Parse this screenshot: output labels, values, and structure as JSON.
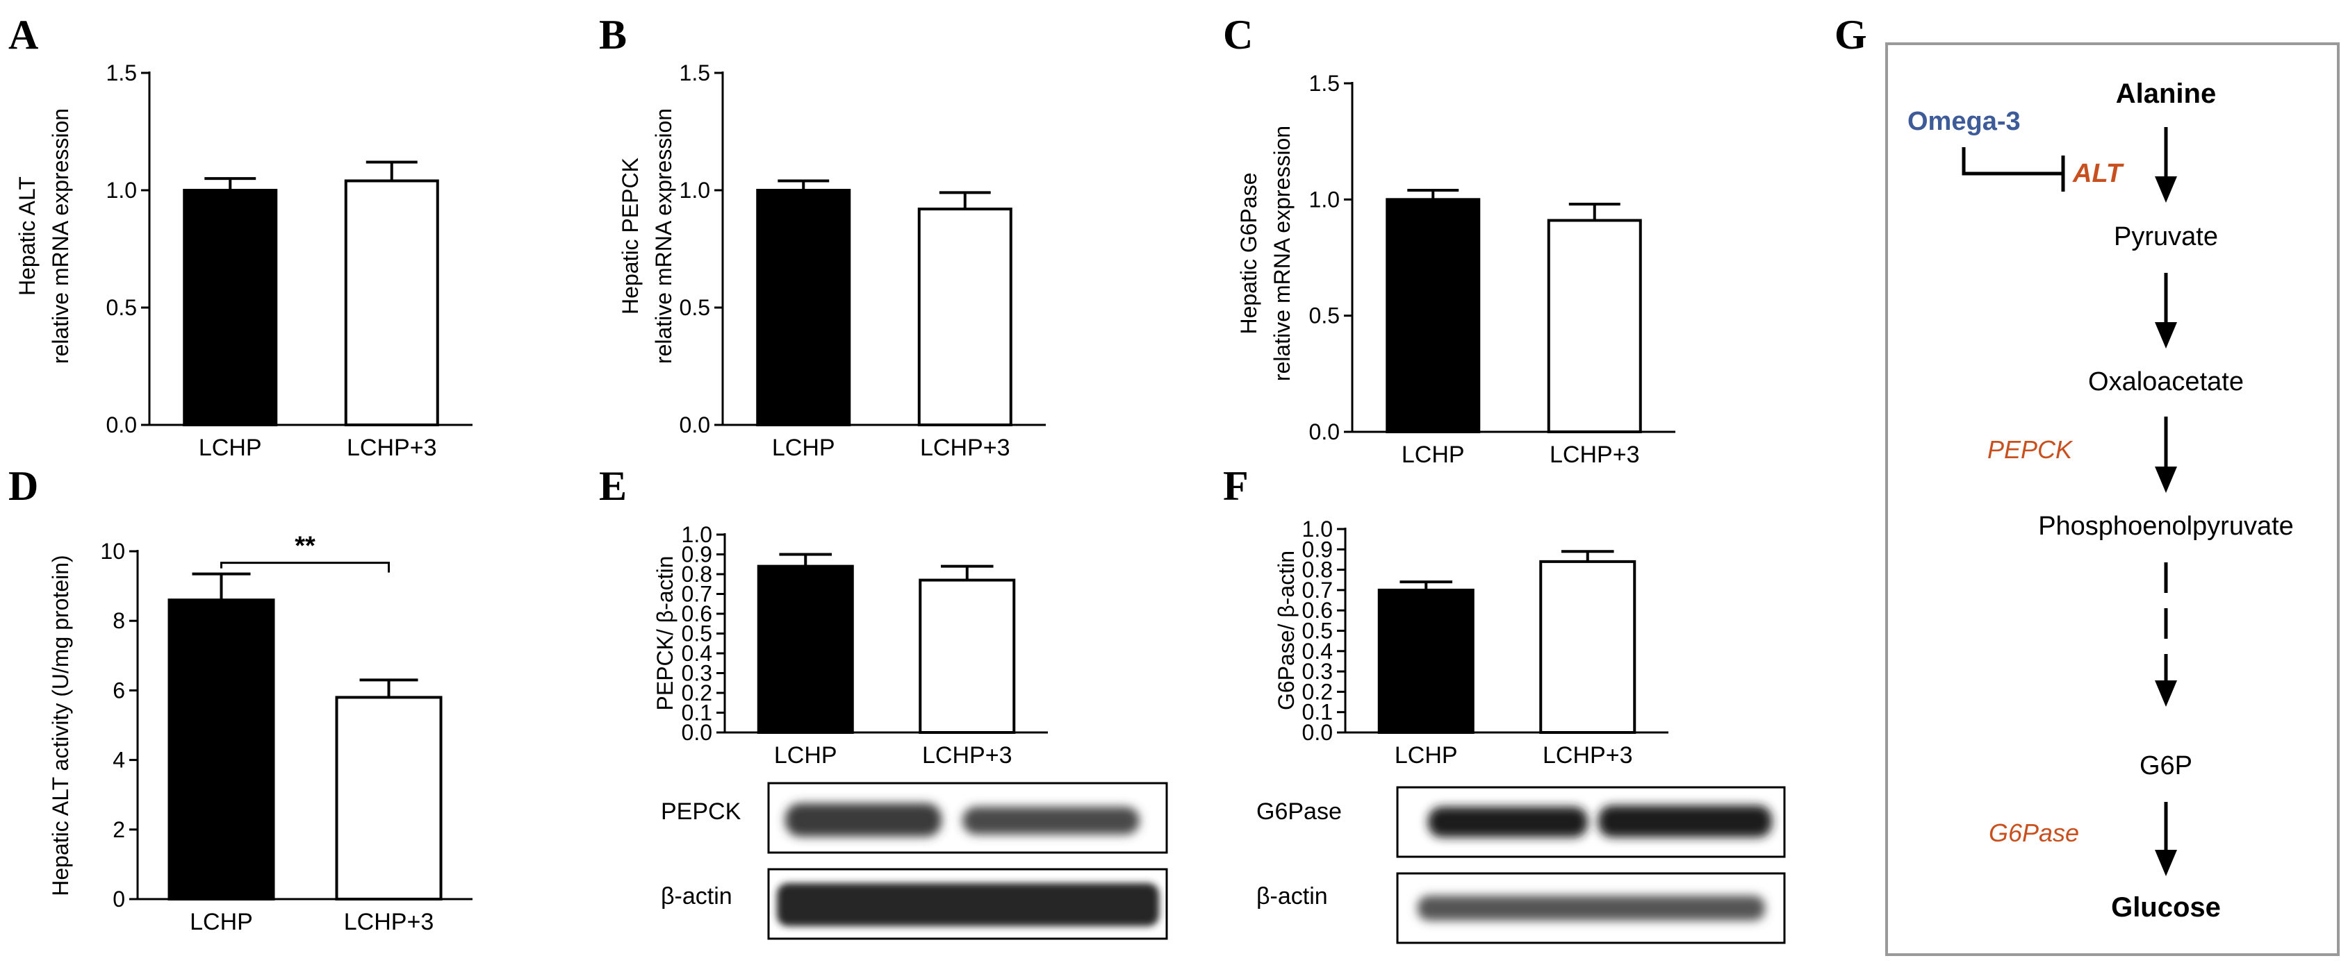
{
  "panels": [
    {
      "letter": "A",
      "chart_data": {
        "type": "bar",
        "ylabel": [
          "Hepatic ALT",
          "relative mRNA expression"
        ],
        "categories": [
          "LCHP",
          "LCHP+3"
        ],
        "values": [
          1.0,
          1.04
        ],
        "errors": [
          0.05,
          0.08
        ],
        "fills": [
          "#000000",
          "#ffffff"
        ],
        "ylim": [
          0,
          1.5
        ],
        "yticks": [
          0.0,
          0.5,
          1.0,
          1.5
        ],
        "tick_labels": [
          "0.0",
          "0.5",
          "1.0",
          "1.5"
        ]
      }
    },
    {
      "letter": "B",
      "chart_data": {
        "type": "bar",
        "ylabel": [
          "Hepatic PEPCK",
          "relative mRNA expression"
        ],
        "categories": [
          "LCHP",
          "LCHP+3"
        ],
        "values": [
          1.0,
          0.92
        ],
        "errors": [
          0.04,
          0.07
        ],
        "fills": [
          "#000000",
          "#ffffff"
        ],
        "ylim": [
          0,
          1.5
        ],
        "yticks": [
          0.0,
          0.5,
          1.0,
          1.5
        ],
        "tick_labels": [
          "0.0",
          "0.5",
          "1.0",
          "1.5"
        ]
      }
    },
    {
      "letter": "C",
      "chart_data": {
        "type": "bar",
        "ylabel": [
          "Hepatic G6Pase",
          "relative mRNA expression"
        ],
        "categories": [
          "LCHP",
          "LCHP+3"
        ],
        "values": [
          1.0,
          0.91
        ],
        "errors": [
          0.04,
          0.07
        ],
        "fills": [
          "#000000",
          "#ffffff"
        ],
        "ylim": [
          0,
          1.5
        ],
        "yticks": [
          0.0,
          0.5,
          1.0,
          1.5
        ],
        "tick_labels": [
          "0.0",
          "0.5",
          "1.0",
          "1.5"
        ]
      }
    },
    {
      "letter": "D",
      "chart_data": {
        "type": "bar",
        "ylabel": [
          "Hepatic ALT activity (U/mg protein)"
        ],
        "categories": [
          "LCHP",
          "LCHP+3"
        ],
        "values": [
          8.6,
          5.8
        ],
        "errors": [
          0.75,
          0.5
        ],
        "fills": [
          "#000000",
          "#ffffff"
        ],
        "ylim": [
          0,
          10
        ],
        "yticks": [
          0,
          2,
          4,
          6,
          8,
          10
        ],
        "tick_labels": [
          "0",
          "2",
          "4",
          "6",
          "8",
          "10"
        ],
        "significance": "**"
      }
    },
    {
      "letter": "E",
      "chart_data": {
        "type": "bar",
        "ylabel": [
          "PEPCK/ β-actin"
        ],
        "categories": [
          "LCHP",
          "LCHP+3"
        ],
        "values": [
          0.84,
          0.77
        ],
        "errors": [
          0.06,
          0.07
        ],
        "fills": [
          "#000000",
          "#ffffff"
        ],
        "ylim": [
          0,
          1.0
        ],
        "yticks": [
          0.0,
          0.1,
          0.2,
          0.3,
          0.4,
          0.5,
          0.6,
          0.7,
          0.8,
          0.9,
          1.0
        ],
        "tick_labels": [
          "0.0",
          "0.1",
          "0.2",
          "0.3",
          "0.4",
          "0.5",
          "0.6",
          "0.7",
          "0.8",
          "0.9",
          "1.0"
        ]
      },
      "blot_labels": [
        "PEPCK",
        "β-actin"
      ]
    },
    {
      "letter": "F",
      "chart_data": {
        "type": "bar",
        "ylabel": [
          "G6Pase/ β-actin"
        ],
        "categories": [
          "LCHP",
          "LCHP+3"
        ],
        "values": [
          0.7,
          0.84
        ],
        "errors": [
          0.04,
          0.05
        ],
        "fills": [
          "#000000",
          "#ffffff"
        ],
        "ylim": [
          0,
          1.0
        ],
        "yticks": [
          0.0,
          0.1,
          0.2,
          0.3,
          0.4,
          0.5,
          0.6,
          0.7,
          0.8,
          0.9,
          1.0
        ],
        "tick_labels": [
          "0.0",
          "0.1",
          "0.2",
          "0.3",
          "0.4",
          "0.5",
          "0.6",
          "0.7",
          "0.8",
          "0.9",
          "1.0"
        ]
      },
      "blot_labels": [
        "G6Pase",
        "β-actin"
      ]
    }
  ],
  "pathway": {
    "letter": "G",
    "inhibitor": "Omega-3",
    "steps": [
      "Alanine",
      "Pyruvate",
      "Oxaloacetate",
      "Phosphoenolpyruvate",
      "G6P",
      "Glucose"
    ],
    "enzymes": [
      "ALT",
      "PEPCK",
      "G6Pase"
    ]
  }
}
